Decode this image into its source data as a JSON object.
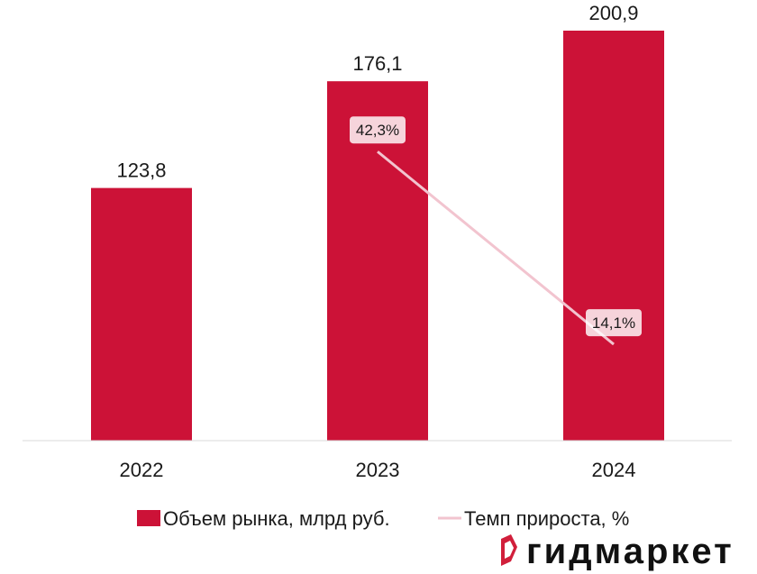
{
  "chart_data": {
    "type": "bar",
    "categories": [
      "2022",
      "2023",
      "2024"
    ],
    "series": [
      {
        "name": "Объем рынка, млрд руб.",
        "type": "bar",
        "values": [
          123.8,
          176.1,
          200.9
        ],
        "labels": [
          "123,8",
          "176,1",
          "200,9"
        ],
        "color": "#cc1237"
      },
      {
        "name": "Темп прироста, %",
        "type": "line",
        "values": [
          null,
          42.3,
          14.1
        ],
        "labels": [
          "",
          "42,3%",
          "14,1%"
        ],
        "color": "#f2c4cf"
      }
    ],
    "ylim": [
      0,
      200.9
    ],
    "line_ylim": [
      0,
      60
    ],
    "grid": false,
    "legend": {
      "position": "bottom",
      "entries": [
        "Объем рынка, млрд руб.",
        "Темп прироста, %"
      ]
    }
  },
  "brand": {
    "name": "гидмаркет",
    "logo_icon": "brand-logo-icon",
    "logo_color": "#d11f3b"
  }
}
